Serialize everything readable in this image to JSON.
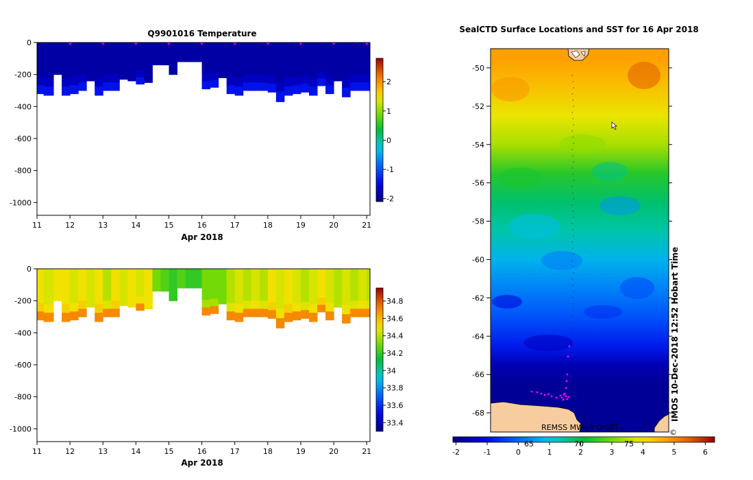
{
  "chart_data": [
    {
      "id": "temperature",
      "type": "heatmap",
      "title": "Q9901016  Temperature",
      "xlabel": "Apr 2018",
      "ylabel": "",
      "xlim": [
        11,
        21.1
      ],
      "ylim": [
        -1080,
        0
      ],
      "xticks": [
        "11",
        "12",
        "13",
        "14",
        "15",
        "16",
        "17",
        "18",
        "19",
        "20",
        "21"
      ],
      "yticks": [
        "0",
        "-200",
        "-400",
        "-600",
        "-800",
        "-1000"
      ],
      "profile_times": [
        11.0,
        11.2,
        11.5,
        11.75,
        12.0,
        12.25,
        12.5,
        12.75,
        13.0,
        13.25,
        13.5,
        13.75,
        14.0,
        14.25,
        14.5,
        14.75,
        15.0,
        15.25,
        15.5,
        15.75,
        16.0,
        16.25,
        16.5,
        16.75,
        17.0,
        17.25,
        17.5,
        17.75,
        18.0,
        18.25,
        18.5,
        18.75,
        19.0,
        19.25,
        19.5,
        19.75,
        20.0,
        20.25,
        20.5,
        20.75,
        21.0,
        21.1
      ],
      "profile_depths": [
        320,
        330,
        200,
        330,
        320,
        300,
        240,
        330,
        300,
        300,
        230,
        240,
        260,
        250,
        140,
        140,
        200,
        120,
        120,
        120,
        290,
        280,
        220,
        320,
        330,
        300,
        300,
        300,
        310,
        370,
        330,
        320,
        310,
        330,
        270,
        320,
        240,
        340,
        300,
        300,
        300,
        310
      ],
      "surface_value": -1.9,
      "deep_value": -1.4,
      "colorbar": {
        "min": -2.1,
        "max": 2.8,
        "ticks": [
          "2",
          "1",
          "0",
          "-1",
          "-2"
        ]
      },
      "markers": [
        "12",
        "13",
        "14",
        "15",
        "16",
        "17",
        "18",
        "19",
        "20",
        "21"
      ]
    },
    {
      "id": "salinity",
      "type": "heatmap",
      "title": "",
      "xlabel": "Apr 2018",
      "ylabel": "",
      "xlim": [
        11,
        21.1
      ],
      "ylim": [
        -1080,
        0
      ],
      "xticks": [
        "11",
        "12",
        "13",
        "14",
        "15",
        "16",
        "17",
        "18",
        "19",
        "20",
        "21"
      ],
      "yticks": [
        "0",
        "-200",
        "-400",
        "-600",
        "-800",
        "-1000"
      ],
      "profile_times": [
        11.0,
        11.2,
        11.5,
        11.75,
        12.0,
        12.25,
        12.5,
        12.75,
        13.0,
        13.25,
        13.5,
        13.75,
        14.0,
        14.25,
        14.5,
        14.75,
        15.0,
        15.25,
        15.5,
        15.75,
        16.0,
        16.25,
        16.5,
        16.75,
        17.0,
        17.25,
        17.5,
        17.75,
        18.0,
        18.25,
        18.5,
        18.75,
        19.0,
        19.25,
        19.5,
        19.75,
        20.0,
        20.25,
        20.5,
        20.75,
        21.0,
        21.1
      ],
      "profile_depths": [
        320,
        330,
        200,
        330,
        320,
        300,
        240,
        330,
        300,
        300,
        230,
        240,
        260,
        250,
        140,
        140,
        200,
        120,
        120,
        120,
        290,
        280,
        220,
        320,
        330,
        300,
        300,
        300,
        310,
        370,
        330,
        320,
        310,
        330,
        270,
        320,
        240,
        340,
        300,
        300,
        300,
        310
      ],
      "surface_values": [
        34.5,
        34.45,
        34.5,
        34.5,
        34.45,
        34.5,
        34.45,
        34.5,
        34.4,
        34.5,
        34.45,
        34.5,
        34.45,
        34.5,
        34.3,
        34.25,
        34.2,
        34.25,
        34.2,
        34.2,
        34.3,
        34.3,
        34.3,
        34.4,
        34.45,
        34.4,
        34.45,
        34.4,
        34.5,
        34.45,
        34.5,
        34.45,
        34.4,
        34.45,
        34.5,
        34.45,
        34.4,
        34.45,
        34.4,
        34.45,
        34.4,
        34.45
      ],
      "deep_value": 34.7,
      "colorbar": {
        "min": 33.3,
        "max": 34.95,
        "ticks": [
          "34.8",
          "34.6",
          "34.4",
          "34.2",
          "34",
          "33.8",
          "33.6",
          "33.4"
        ]
      }
    },
    {
      "id": "sst-map",
      "type": "heatmap",
      "title": "SealCTD Surface Locations and SST for 16 Apr 2018",
      "ylim": [
        -69,
        -49
      ],
      "yticks": [
        "-50",
        "-52",
        "-54",
        "-56",
        "-58",
        "-60",
        "-62",
        "-64",
        "-66",
        "-68"
      ],
      "sst_by_latitude": [
        {
          "lat": -49.5,
          "sst": 4.8
        },
        {
          "lat": -51,
          "sst": 4.4
        },
        {
          "lat": -52.5,
          "sst": 3.9
        },
        {
          "lat": -54,
          "sst": 3.4
        },
        {
          "lat": -55.5,
          "sst": 2.4
        },
        {
          "lat": -57,
          "sst": 1.8
        },
        {
          "lat": -58.5,
          "sst": 1.4
        },
        {
          "lat": -60,
          "sst": 0.8
        },
        {
          "lat": -61.5,
          "sst": 0.3
        },
        {
          "lat": -63,
          "sst": -0.2
        },
        {
          "lat": -64.5,
          "sst": -0.8
        },
        {
          "lat": -65.5,
          "sst": -1.6
        },
        {
          "lat": -66.5,
          "sst": -1.9
        },
        {
          "lat": -69,
          "sst": -1.9
        }
      ],
      "colorbar": {
        "min": -2.1,
        "max": 6.3,
        "ticks": [
          "-2",
          "-1",
          "0",
          "1",
          "2",
          "3",
          "4",
          "5",
          "6"
        ],
        "overlay_labels": [
          "65",
          "70",
          "75"
        ]
      },
      "data_source": "REMSS MW-IR OISST -",
      "timestamp": "IMOS 10-Dec-2018 12:52 Hobart Time",
      "copyright": "©"
    }
  ],
  "colors": {
    "background": "#ffffff",
    "land": "#f7cc9e",
    "marker": "#d000d0",
    "seal_track": "#ff00ff"
  }
}
